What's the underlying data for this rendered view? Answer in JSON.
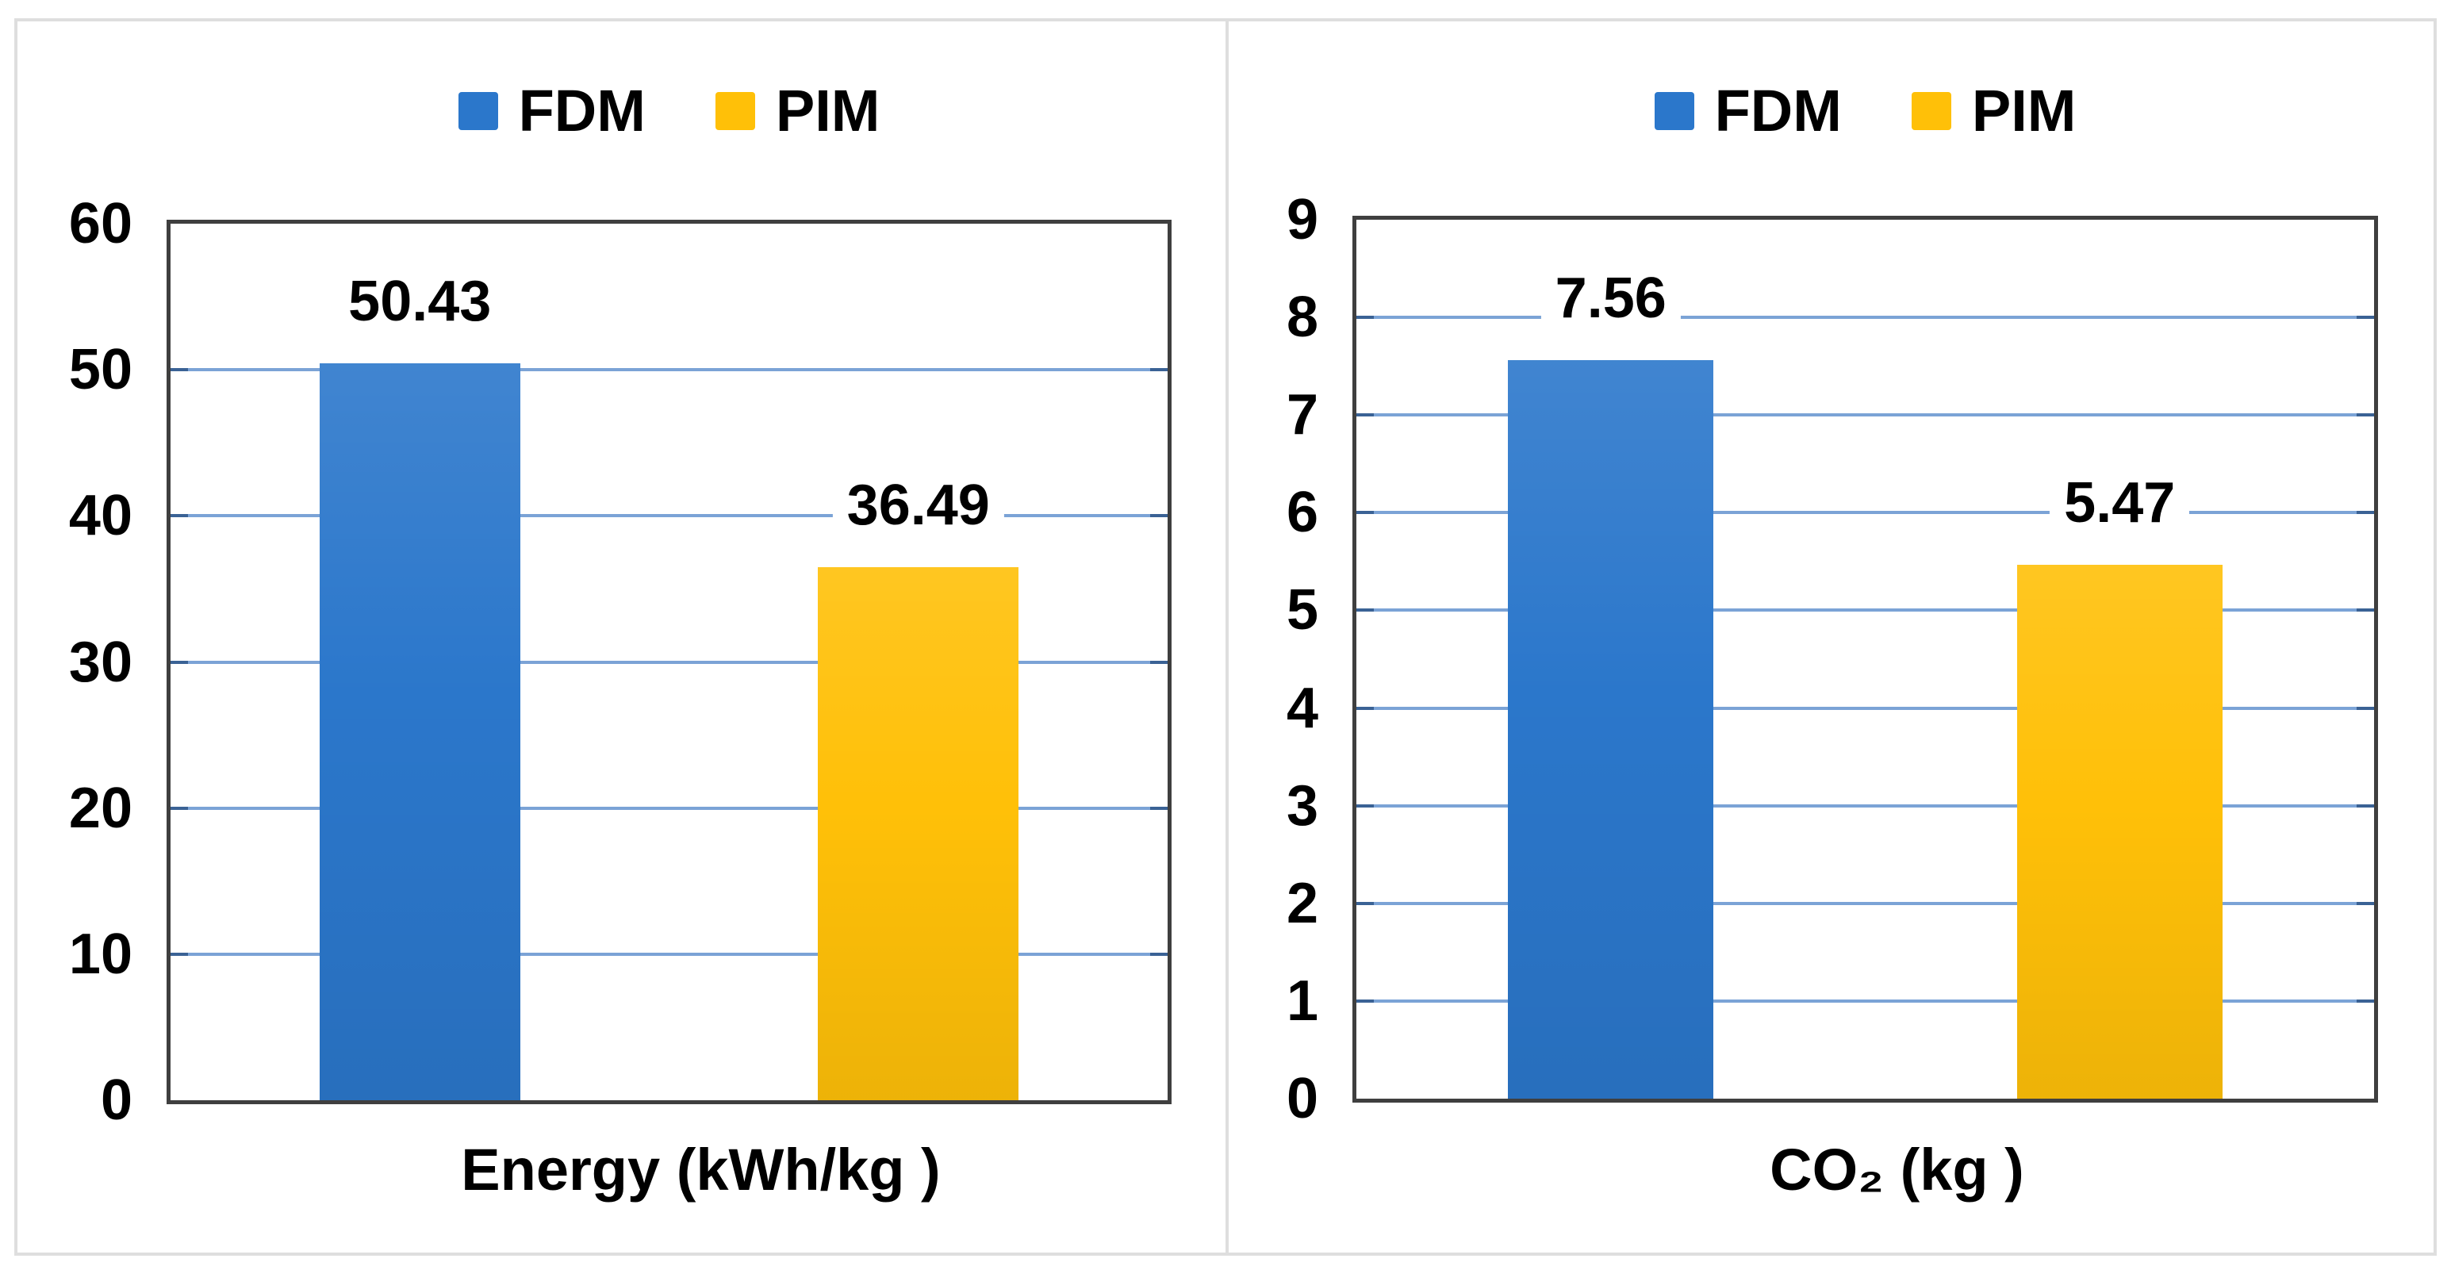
{
  "figure": {
    "background": "#ffffff",
    "outer_border_color": "#dedede",
    "plot_frame_color": "#3f3f3f"
  },
  "colors": {
    "fdm_blue": "#2b77cb",
    "pim_yellow": "#ffc008",
    "gridline_blue": "#7ba3d6",
    "gridline_tick_dark": "#3a6295",
    "text": "#000000"
  },
  "chart_data": [
    {
      "type": "bar",
      "title": "",
      "xlabel": "Energy (kWh/kg )",
      "ylabel": "",
      "categories": [
        "FDM",
        "PIM"
      ],
      "values": [
        50.43,
        36.49
      ],
      "data_labels": [
        "50.43",
        "36.49"
      ],
      "bar_colors": [
        "#2b77cb",
        "#ffc008"
      ],
      "ylim": [
        0,
        60
      ],
      "ytick_step": 10,
      "ytick_labels": [
        "0",
        "10",
        "20",
        "30",
        "40",
        "50",
        "60"
      ],
      "grid": true,
      "legend": [
        "FDM",
        "PIM"
      ],
      "legend_position": "top"
    },
    {
      "type": "bar",
      "title": "",
      "xlabel": "CO₂ (kg )",
      "ylabel": "",
      "categories": [
        "FDM",
        "PIM"
      ],
      "values": [
        7.56,
        5.47
      ],
      "data_labels": [
        "7.56",
        "5.47"
      ],
      "bar_colors": [
        "#2b77cb",
        "#ffc008"
      ],
      "ylim": [
        0,
        9
      ],
      "ytick_step": 1,
      "ytick_labels": [
        "0",
        "1",
        "2",
        "3",
        "4",
        "5",
        "6",
        "7",
        "8",
        "9"
      ],
      "grid": true,
      "legend": [
        "FDM",
        "PIM"
      ],
      "legend_position": "top"
    }
  ]
}
